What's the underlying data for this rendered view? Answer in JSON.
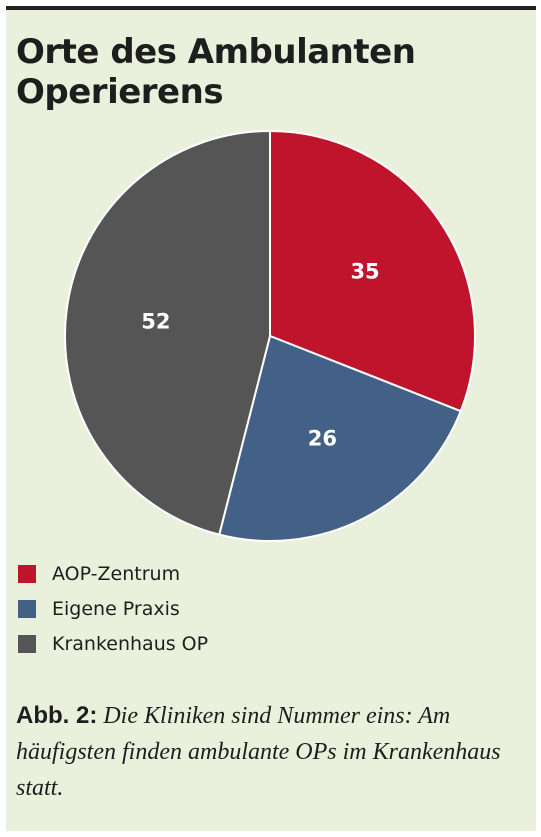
{
  "colors": {
    "panel_background": "#e9f1dc",
    "aop_zentrum": "#c0142d",
    "eigene_praxis": "#436086",
    "krankenhaus_op": "#555555",
    "text": "#1e1e1e"
  },
  "title": {
    "line1": "Orte des Ambulanten",
    "line2": "Operierens"
  },
  "chart_data": {
    "type": "pie",
    "title": "Orte des Ambulanten Operierens",
    "categories": [
      "AOP-Zentrum",
      "Eigene Praxis",
      "Krankenhaus OP"
    ],
    "values": [
      35,
      26,
      52
    ],
    "colors": [
      "#c0142d",
      "#436086",
      "#555555"
    ],
    "start_angle": "12 o'clock",
    "direction": "clockwise",
    "legend_position": "bottom-left"
  },
  "legend": {
    "items": [
      {
        "label": "AOP-Zentrum",
        "color": "#c0142d"
      },
      {
        "label": "Eigene Praxis",
        "color": "#436086"
      },
      {
        "label": "Krankenhaus OP",
        "color": "#555555"
      }
    ]
  },
  "caption": {
    "label": "Abb. 2:",
    "text": "Die Kliniken sind Nummer eins: Am häufigsten finden ambulante OPs im Krankenhaus statt."
  }
}
